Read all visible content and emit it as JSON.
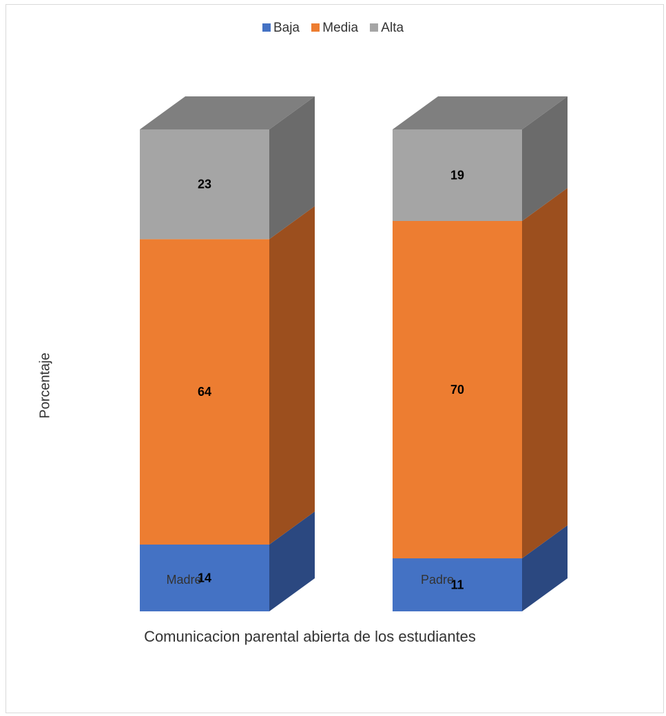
{
  "chart_data": {
    "type": "bar",
    "stacked": true,
    "three_d": true,
    "categories": [
      "Madre",
      "Padre"
    ],
    "series": [
      {
        "name": "Baja",
        "values": [
          14,
          11
        ],
        "color": "#4472C4",
        "side_color": "#2B4880"
      },
      {
        "name": "Media",
        "values": [
          64,
          70
        ],
        "color": "#ED7D31",
        "side_color": "#9C4F1E"
      },
      {
        "name": "Alta",
        "values": [
          23,
          19
        ],
        "color": "#A5A5A5",
        "side_color": "#6B6B6B"
      }
    ],
    "top_color": "#7F7F7F",
    "title": "",
    "xlabel": "Comunicacion parental abierta de los estudiantes",
    "ylabel": "Porcentaje",
    "legend_position": "top",
    "grid": false
  }
}
